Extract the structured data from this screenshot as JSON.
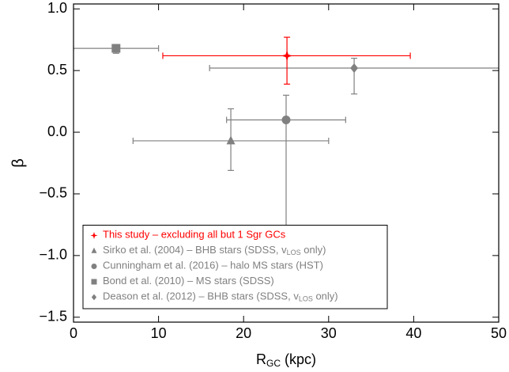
{
  "chart_data": {
    "type": "scatter",
    "x_label": [
      "R",
      "GC",
      " (kpc)"
    ],
    "y_label": "β",
    "xlim": [
      0,
      50
    ],
    "ylim": [
      -1.54,
      1.04
    ],
    "xticks": [
      0,
      10,
      20,
      30,
      40,
      50
    ],
    "yticks": [
      {
        "value": 1.0,
        "label": "1.0"
      },
      {
        "value": 0.5,
        "label": "0.5"
      },
      {
        "value": 0.0,
        "label": "0.0"
      },
      {
        "value": -0.5,
        "label": "−0.5"
      },
      {
        "value": -1.0,
        "label": "−1.0"
      },
      {
        "value": -1.5,
        "label": "−1.5"
      }
    ],
    "legend": "lower left",
    "series": [
      {
        "name": [
          "This study – excluding all but 1 Sgr GCs"
        ],
        "color": "#ff0000",
        "marker": "star",
        "x": [
          25.1
        ],
        "values": [
          0.62
        ],
        "x_lo": [
          10.5
        ],
        "x_hi": [
          39.6
        ],
        "y_lo": [
          0.39
        ],
        "y_hi": [
          0.77
        ]
      },
      {
        "name": [
          "Sirko et al. (2004) – BHB stars (SDSS, v",
          "LOS",
          " only)"
        ],
        "color": "#808080",
        "marker": "triangle",
        "x": [
          18.5
        ],
        "values": [
          -0.07
        ],
        "x_lo": [
          7.0
        ],
        "x_hi": [
          30.0
        ],
        "y_lo": [
          -0.31
        ],
        "y_hi": [
          0.19
        ]
      },
      {
        "name": [
          "Cunningham et al. (2016) – halo MS stars (HST)"
        ],
        "color": "#808080",
        "marker": "circle",
        "x": [
          25.0
        ],
        "values": [
          0.1
        ],
        "x_lo": [
          18.0
        ],
        "x_hi": [
          32.0
        ],
        "y_lo": [
          -0.85
        ],
        "y_hi": [
          0.3
        ]
      },
      {
        "name": [
          "Bond et al. (2010) – MS stars (SDSS)"
        ],
        "color": "#808080",
        "marker": "square",
        "x": [
          5.0
        ],
        "values": [
          0.68
        ],
        "x_lo": [
          0.0
        ],
        "x_hi": [
          10.0
        ],
        "y_lo": [
          0.64
        ],
        "y_hi": [
          0.71
        ]
      },
      {
        "name": [
          "Deason et al. (2012) – BHB stars (SDSS, v",
          "LOS",
          " only)"
        ],
        "color": "#808080",
        "marker": "diamond",
        "x": [
          33.0
        ],
        "values": [
          0.52
        ],
        "x_lo": [
          16.0
        ],
        "x_hi": [
          52.0
        ],
        "y_lo": [
          0.31
        ],
        "y_hi": [
          0.6
        ]
      }
    ]
  }
}
